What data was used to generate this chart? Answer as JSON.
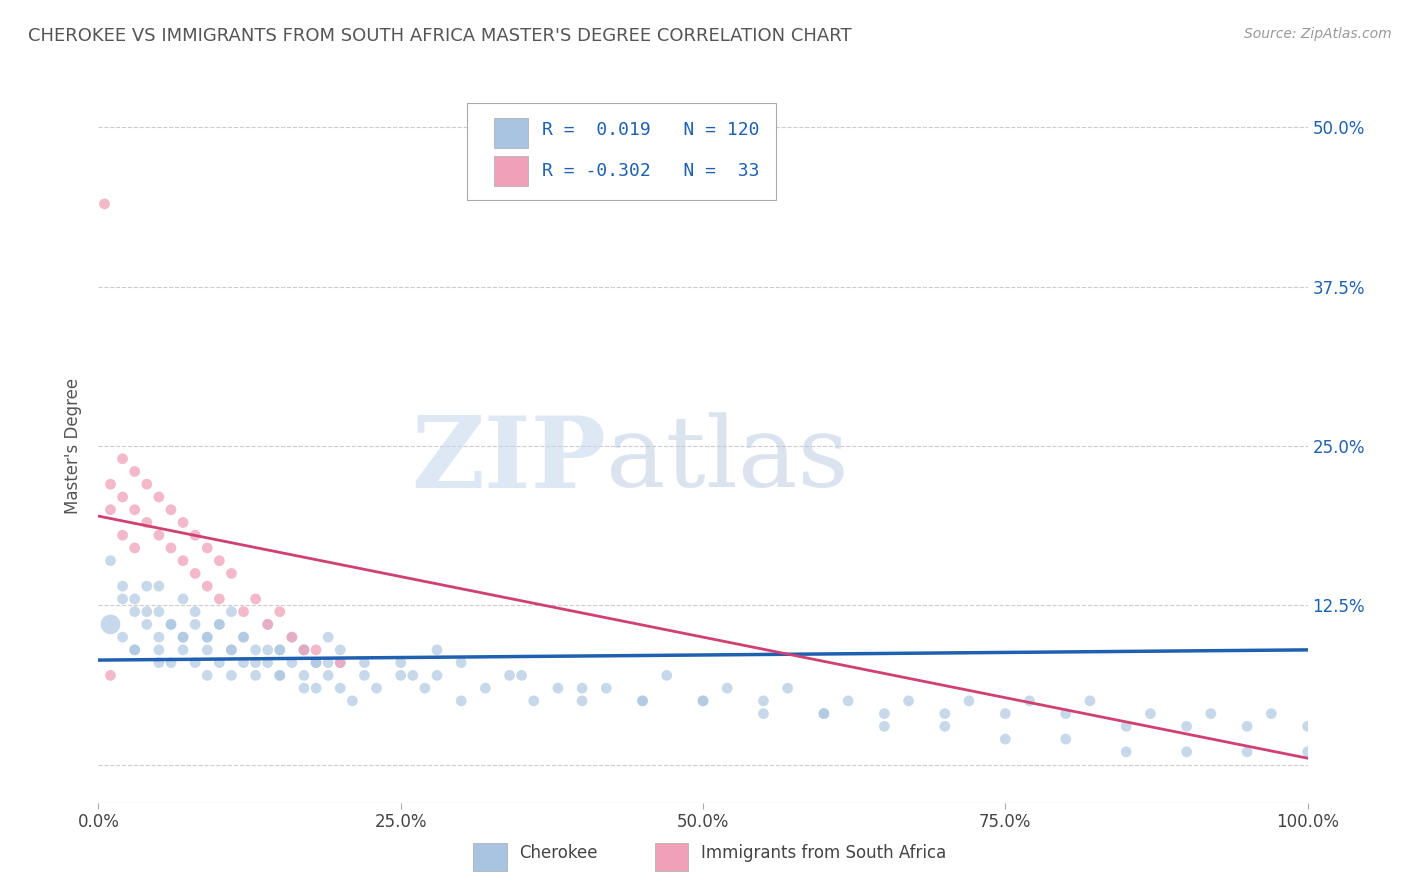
{
  "title": "CHEROKEE VS IMMIGRANTS FROM SOUTH AFRICA MASTER'S DEGREE CORRELATION CHART",
  "source": "Source: ZipAtlas.com",
  "xlabel_legend_blue": "Cherokee",
  "xlabel_legend_pink": "Immigrants from South Africa",
  "ylabel": "Master's Degree",
  "r_blue": 0.019,
  "n_blue": 120,
  "r_pink": -0.302,
  "n_pink": 33,
  "blue_color": "#a8c4e0",
  "pink_color": "#f0a0b8",
  "blue_line_color": "#2060b0",
  "pink_line_color": "#d04070",
  "background_color": "#ffffff",
  "grid_color": "#cccccc",
  "title_color": "#555555",
  "legend_text_color": "#2060b0",
  "xmin": 0.0,
  "xmax": 100.0,
  "ymin": -3.0,
  "ymax": 53.0,
  "yticks": [
    0.0,
    12.5,
    25.0,
    37.5,
    50.0
  ],
  "xticks": [
    0.0,
    25.0,
    50.0,
    75.0,
    100.0
  ],
  "xtick_labels": [
    "0.0%",
    "25.0%",
    "50.0%",
    "75.0%",
    "100.0%"
  ],
  "ytick_labels_right": [
    "",
    "12.5%",
    "25.0%",
    "37.5%",
    "50.0%"
  ],
  "blue_slope": 0.008,
  "blue_intercept": 8.2,
  "pink_slope": -0.19,
  "pink_intercept": 19.5,
  "watermark_zip": "ZIP",
  "watermark_atlas": "atlas",
  "figsize": [
    14.06,
    8.92
  ],
  "dpi": 100,
  "blue_scatter": {
    "x": [
      1,
      2,
      2,
      3,
      3,
      4,
      4,
      5,
      5,
      5,
      6,
      6,
      7,
      7,
      8,
      8,
      9,
      9,
      10,
      10,
      11,
      11,
      12,
      12,
      13,
      14,
      14,
      15,
      15,
      16,
      17,
      17,
      18,
      18,
      19,
      20,
      20,
      22,
      23,
      25,
      26,
      27,
      28,
      30,
      32,
      34,
      36,
      38,
      40,
      42,
      45,
      47,
      50,
      52,
      55,
      57,
      60,
      62,
      65,
      67,
      70,
      72,
      75,
      77,
      80,
      82,
      85,
      87,
      90,
      92,
      95,
      97,
      100,
      1,
      2,
      3,
      4,
      5,
      6,
      7,
      8,
      9,
      10,
      11,
      12,
      13,
      14,
      15,
      16,
      17,
      18,
      19,
      20,
      22,
      25,
      28,
      30,
      35,
      40,
      45,
      50,
      55,
      60,
      65,
      70,
      75,
      80,
      85,
      90,
      95,
      100,
      3,
      5,
      7,
      9,
      11,
      13,
      15,
      17,
      19,
      21
    ],
    "y": [
      11,
      10,
      13,
      9,
      12,
      11,
      14,
      10,
      12,
      9,
      11,
      8,
      10,
      9,
      11,
      8,
      10,
      9,
      8,
      11,
      9,
      7,
      8,
      10,
      7,
      9,
      8,
      7,
      9,
      8,
      7,
      9,
      8,
      6,
      7,
      8,
      6,
      7,
      6,
      8,
      7,
      6,
      7,
      5,
      6,
      7,
      5,
      6,
      5,
      6,
      5,
      7,
      5,
      6,
      5,
      6,
      4,
      5,
      4,
      5,
      4,
      5,
      4,
      5,
      4,
      5,
      3,
      4,
      3,
      4,
      3,
      4,
      3,
      16,
      14,
      13,
      12,
      14,
      11,
      13,
      12,
      10,
      11,
      12,
      10,
      9,
      11,
      9,
      10,
      9,
      8,
      10,
      9,
      8,
      7,
      9,
      8,
      7,
      6,
      5,
      5,
      4,
      4,
      3,
      3,
      2,
      2,
      1,
      1,
      1,
      1,
      9,
      8,
      10,
      7,
      9,
      8,
      7,
      6,
      8,
      5
    ],
    "sizes": [
      200,
      60,
      60,
      60,
      60,
      60,
      60,
      60,
      60,
      60,
      60,
      60,
      60,
      60,
      60,
      60,
      60,
      60,
      60,
      60,
      60,
      60,
      60,
      60,
      60,
      60,
      60,
      60,
      60,
      60,
      60,
      60,
      60,
      60,
      60,
      60,
      60,
      60,
      60,
      60,
      60,
      60,
      60,
      60,
      60,
      60,
      60,
      60,
      60,
      60,
      60,
      60,
      60,
      60,
      60,
      60,
      60,
      60,
      60,
      60,
      60,
      60,
      60,
      60,
      60,
      60,
      60,
      60,
      60,
      60,
      60,
      60,
      60,
      60,
      60,
      60,
      60,
      60,
      60,
      60,
      60,
      60,
      60,
      60,
      60,
      60,
      60,
      60,
      60,
      60,
      60,
      60,
      60,
      60,
      60,
      60,
      60,
      60,
      60,
      60,
      60,
      60,
      60,
      60,
      60,
      60,
      60,
      60,
      60,
      60,
      60,
      60,
      60,
      60,
      60,
      60,
      60,
      60,
      60,
      60,
      60
    ]
  },
  "pink_scatter": {
    "x": [
      0.5,
      1,
      1,
      2,
      2,
      2,
      3,
      3,
      3,
      4,
      4,
      5,
      5,
      6,
      6,
      7,
      7,
      8,
      8,
      9,
      9,
      10,
      10,
      11,
      12,
      13,
      14,
      15,
      16,
      17,
      18,
      20,
      1
    ],
    "y": [
      44,
      22,
      20,
      24,
      21,
      18,
      23,
      20,
      17,
      22,
      19,
      21,
      18,
      20,
      17,
      19,
      16,
      18,
      15,
      17,
      14,
      16,
      13,
      15,
      12,
      13,
      11,
      12,
      10,
      9,
      9,
      8,
      7
    ],
    "sizes": [
      60,
      60,
      60,
      60,
      60,
      60,
      60,
      60,
      60,
      60,
      60,
      60,
      60,
      60,
      60,
      60,
      60,
      60,
      60,
      60,
      60,
      60,
      60,
      60,
      60,
      60,
      60,
      60,
      60,
      60,
      60,
      60,
      60
    ]
  }
}
